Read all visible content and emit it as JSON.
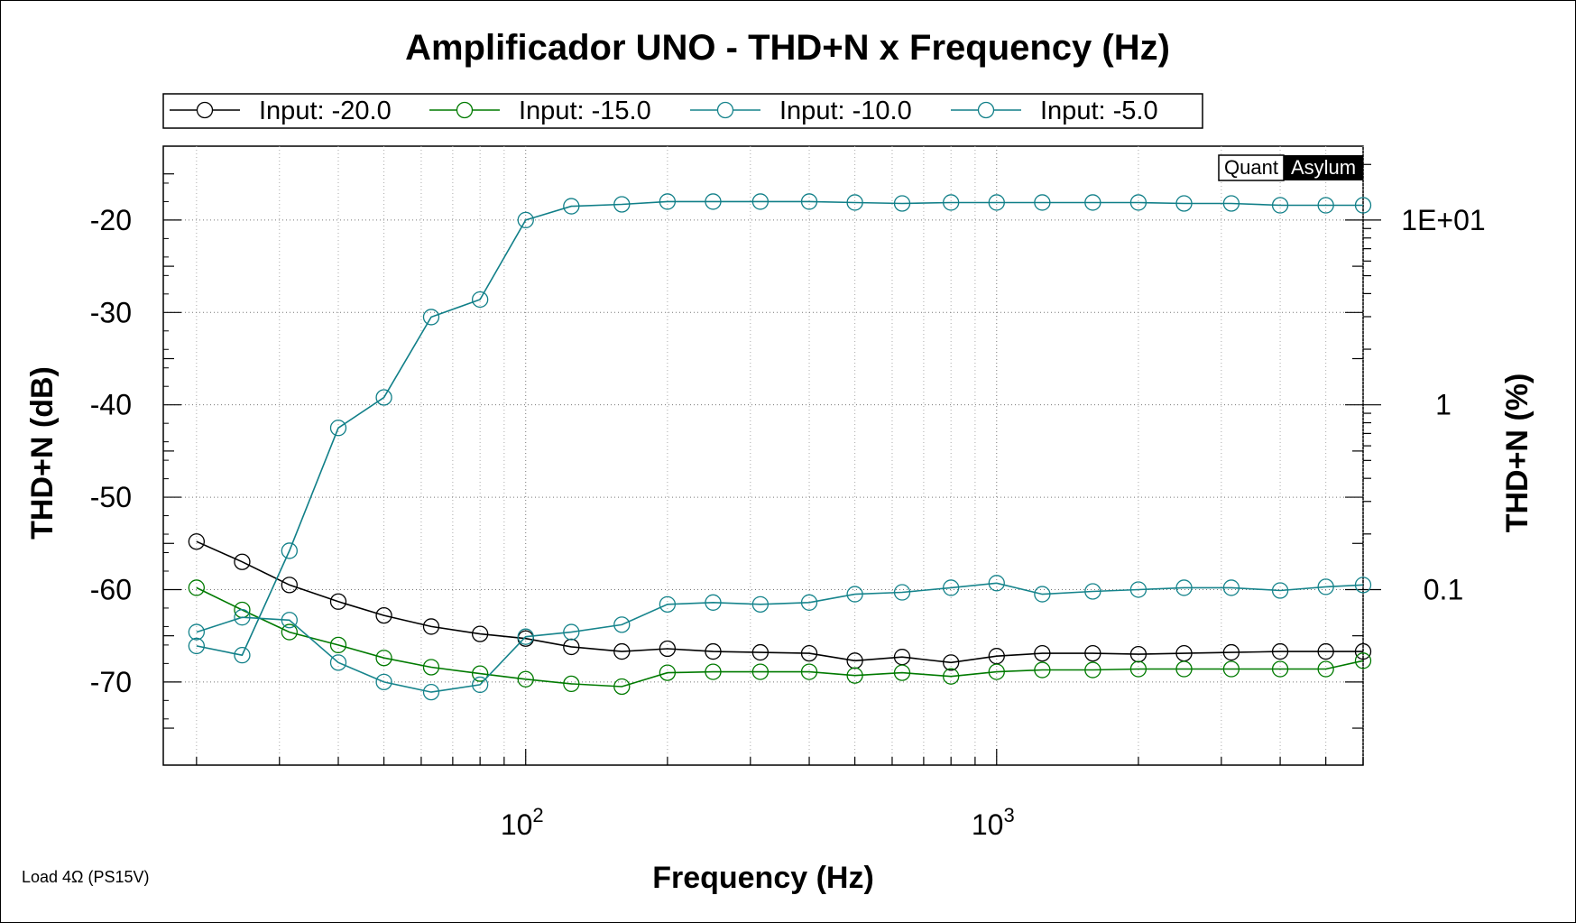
{
  "chart_data": {
    "type": "line",
    "title": "Amplificador UNO - THD+N x Frequency (Hz)",
    "xlabel": "Frequency (Hz)",
    "ylabel": "THD+N (dB)",
    "y2label": "THD+N (%)",
    "x_scale": "log",
    "xlim": [
      17,
      6000
    ],
    "ylim": [
      -79,
      -12
    ],
    "y_ticks": [
      -20,
      -30,
      -40,
      -50,
      -60,
      -70
    ],
    "y_tick_labels": [
      "-20",
      "-30",
      "-40",
      "-50",
      "-60",
      "-70"
    ],
    "x_tick_labels": [
      {
        "value": 100,
        "base": "10",
        "exp": "2"
      },
      {
        "value": 1000,
        "base": "10",
        "exp": "3"
      }
    ],
    "y2_ticks": [
      {
        "db": -20,
        "label": "1E+01"
      },
      {
        "db": -40,
        "label": "1"
      },
      {
        "db": -60,
        "label": "0.1"
      }
    ],
    "grid": true,
    "legend_position": "top",
    "brand": {
      "left": "Quant",
      "right": "Asylum"
    },
    "footer": "Load 4Ω (PS15V)",
    "x": [
      20,
      25,
      31.5,
      40,
      50,
      63,
      80,
      100,
      125,
      160,
      200,
      250,
      315,
      400,
      500,
      630,
      800,
      1000,
      1250,
      1600,
      2000,
      2500,
      3150,
      4000,
      5000,
      6000
    ],
    "series": [
      {
        "name": "Input: -20.0",
        "color": "#000000",
        "values": [
          -54.8,
          -57.0,
          -59.5,
          -61.3,
          -62.8,
          -64.0,
          -64.8,
          -65.3,
          -66.2,
          -66.7,
          -66.4,
          -66.7,
          -66.8,
          -66.9,
          -67.7,
          -67.3,
          -67.9,
          -67.2,
          -66.9,
          -66.9,
          -67.0,
          -66.9,
          -66.8,
          -66.7,
          -66.7,
          -66.7
        ]
      },
      {
        "name": "Input: -15.0",
        "color": "#007a00",
        "values": [
          -59.8,
          -62.2,
          -64.6,
          -66.0,
          -67.4,
          -68.4,
          -69.1,
          -69.7,
          -70.2,
          -70.5,
          -69.0,
          -68.9,
          -68.9,
          -68.9,
          -69.3,
          -69.0,
          -69.4,
          -68.9,
          -68.7,
          -68.7,
          -68.6,
          -68.6,
          -68.6,
          -68.6,
          -68.6,
          -67.7
        ]
      },
      {
        "name": "Input: -10.0",
        "color": "#16848c",
        "values": [
          -64.6,
          -63.0,
          -63.3,
          -67.9,
          -70.0,
          -71.1,
          -70.3,
          -65.1,
          -64.6,
          -63.8,
          -61.6,
          -61.4,
          -61.6,
          -61.4,
          -60.5,
          -60.3,
          -59.8,
          -59.3,
          -60.5,
          -60.2,
          -60.0,
          -59.8,
          -59.8,
          -60.1,
          -59.7,
          -59.5
        ]
      },
      {
        "name": "Input: -5.0",
        "color": "#107f88",
        "values": [
          -66.1,
          -67.1,
          -55.8,
          -42.5,
          -39.2,
          -30.5,
          -28.6,
          -20.0,
          -18.5,
          -18.3,
          -18.0,
          -18.0,
          -18.0,
          -18.0,
          -18.1,
          -18.2,
          -18.1,
          -18.1,
          -18.1,
          -18.1,
          -18.1,
          -18.2,
          -18.2,
          -18.4,
          -18.4,
          -18.4
        ]
      }
    ]
  }
}
